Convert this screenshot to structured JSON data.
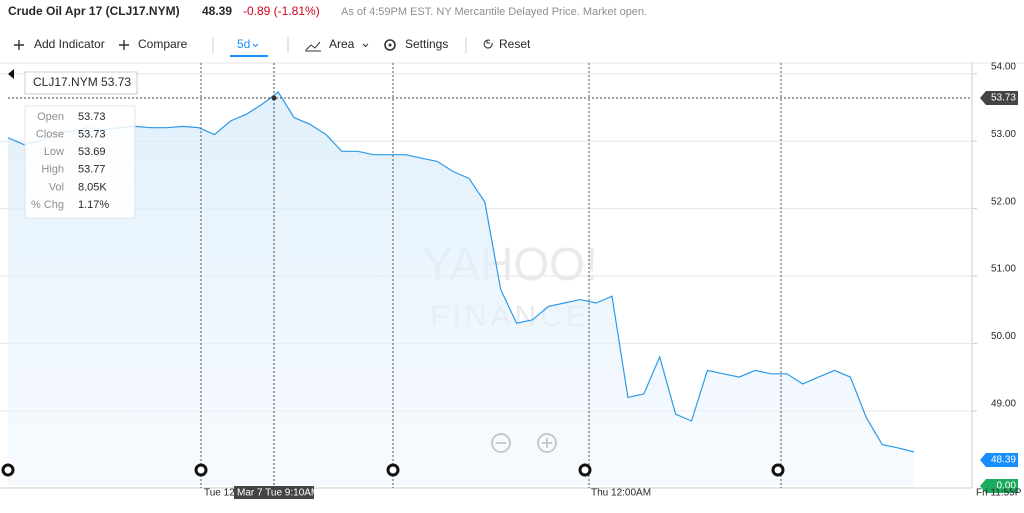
{
  "header": {
    "title": "Crude Oil Apr 17 (CLJ17.NYM)",
    "price": "48.39",
    "change": "-0.89 (-1.81%)",
    "note": "As of 4:59PM EST. NY Mercantile Delayed Price. Market open."
  },
  "toolbar": {
    "add_indicator": "Add Indicator",
    "compare": "Compare",
    "range": "5d",
    "chart_style": "Area",
    "settings": "Settings",
    "reset": "Reset"
  },
  "tooltip": {
    "title": "CLJ17.NYM 53.73",
    "rows": [
      [
        "Open",
        "53.73"
      ],
      [
        "Close",
        "53.73"
      ],
      [
        "Low",
        "53.69"
      ],
      [
        "High",
        "53.77"
      ],
      [
        "Vol",
        "8.05K"
      ],
      [
        "% Chg",
        "1.17%"
      ]
    ]
  },
  "watermark": [
    "YAHOO!",
    "FINANCE"
  ],
  "x_labels": [
    "Tue 12:",
    "Mar 7 Tue 9:10AM",
    "Thu 12:00AM",
    "Fri 11:55P"
  ],
  "price_tags": [
    "53.73",
    "48.39",
    "0.00"
  ],
  "chart_data": {
    "type": "area",
    "color": "#2d9ae6",
    "values": [
      53.05,
      52.95,
      53.0,
      53.12,
      53.15,
      53.2,
      53.17,
      53.2,
      53.22,
      53.2,
      53.2,
      53.22,
      53.2,
      53.1,
      53.3,
      53.4,
      53.55,
      53.73,
      53.35,
      53.25,
      53.1,
      52.85,
      52.85,
      52.8,
      52.8,
      52.8,
      52.75,
      52.7,
      52.55,
      52.45,
      52.1,
      50.8,
      50.3,
      50.35,
      50.55,
      50.6,
      50.65,
      50.6,
      50.7,
      49.2,
      49.25,
      49.8,
      48.95,
      48.85,
      49.6,
      49.55,
      49.5,
      49.6,
      49.55,
      49.55,
      49.4,
      49.5,
      49.6,
      49.5,
      48.9,
      48.5,
      48.45,
      48.39
    ],
    "ylim": [
      47.9,
      54.16
    ],
    "yticks": [
      {
        "value": 49,
        "label": "49.00"
      },
      {
        "value": 50,
        "label": "50.00"
      },
      {
        "value": 51,
        "label": "51.00"
      },
      {
        "value": 52,
        "label": "52.00"
      },
      {
        "value": 53,
        "label": "53.00"
      },
      {
        "value": 54,
        "label": "54.00"
      }
    ],
    "grid": true
  }
}
